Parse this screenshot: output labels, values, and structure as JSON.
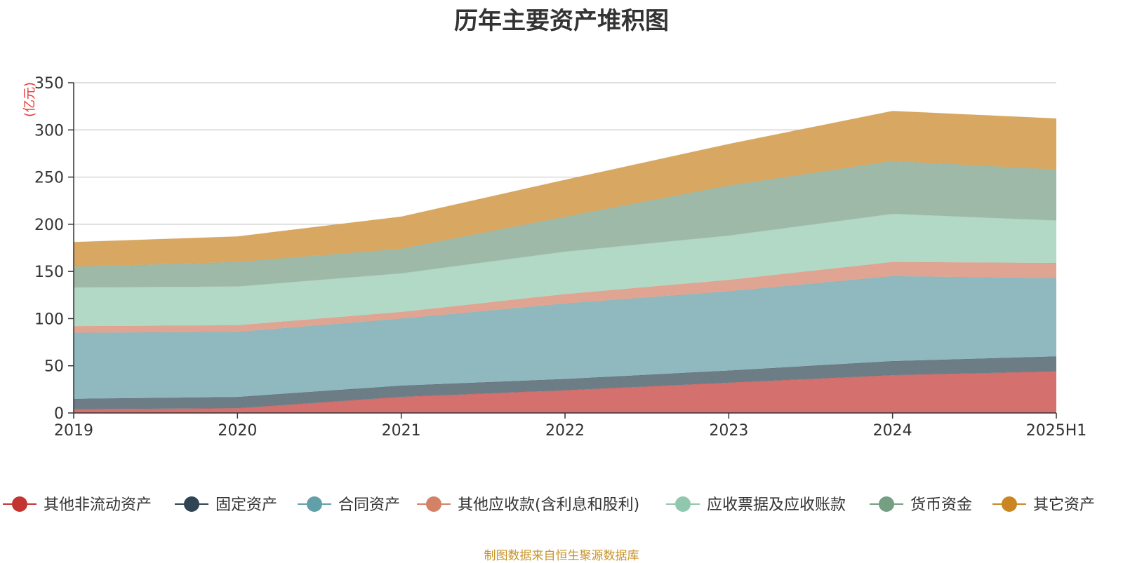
{
  "source_note": "制图数据来自恒生聚源数据库",
  "chart_data": {
    "type": "area",
    "stacked": true,
    "title": "历年主要资产堆积图",
    "unit_label": "(亿元)",
    "categories": [
      "2019",
      "2020",
      "2021",
      "2022",
      "2023",
      "2024",
      "2025H1"
    ],
    "ylim": [
      0,
      350
    ],
    "yticks": [
      0,
      50,
      100,
      150,
      200,
      250,
      300,
      350
    ],
    "grid": true,
    "legend_position": "bottom",
    "series": [
      {
        "name": "其他非流动资产",
        "color": "#c23531",
        "fill": "#d4716f",
        "values": [
          4,
          5,
          17,
          24,
          32,
          40,
          44
        ]
      },
      {
        "name": "固定资产",
        "color": "#2f4554",
        "fill": "#6d7d86",
        "values": [
          11,
          12,
          12,
          12,
          13,
          15,
          16
        ]
      },
      {
        "name": "合同资产",
        "color": "#61a0a8",
        "fill": "#90b9bf",
        "values": [
          70,
          69,
          71,
          80,
          84,
          90,
          83
        ]
      },
      {
        "name": "其他应收款(含利息和股利)",
        "color": "#d48265",
        "fill": "#e0a592",
        "values": [
          7,
          7,
          7,
          10,
          12,
          15,
          16
        ]
      },
      {
        "name": "应收票据及应收账款",
        "color": "#91c7ae",
        "fill": "#b2d8c6",
        "values": [
          41,
          41,
          41,
          45,
          47,
          51,
          45
        ]
      },
      {
        "name": "货币资金",
        "color": "#749f83",
        "fill": "#9eb9a8",
        "values": [
          22,
          26,
          26,
          37,
          53,
          56,
          54
        ]
      },
      {
        "name": "其它资产",
        "color": "#ca8622",
        "fill": "#d8a862",
        "values": [
          26,
          27,
          34,
          39,
          44,
          53,
          54
        ]
      }
    ]
  }
}
